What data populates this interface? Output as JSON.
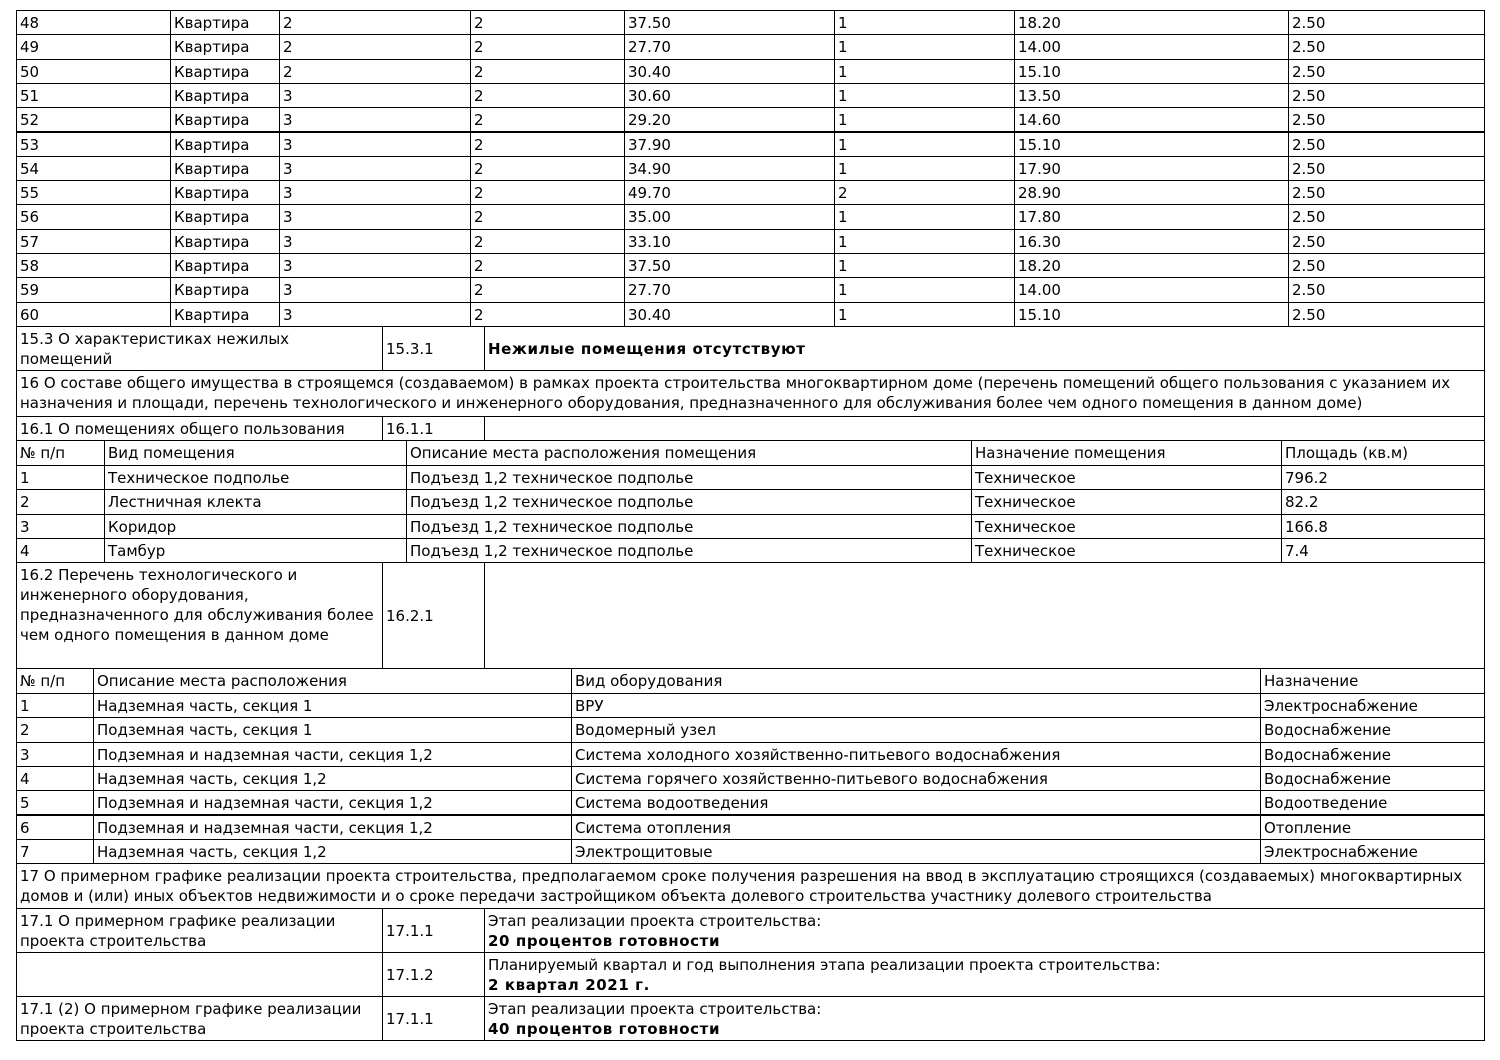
{
  "apartments": {
    "rows": [
      [
        "48",
        "Квартира",
        "2",
        "2",
        "37.50",
        "1",
        "18.20",
        "2.50"
      ],
      [
        "49",
        "Квартира",
        "2",
        "2",
        "27.70",
        "1",
        "14.00",
        "2.50"
      ],
      [
        "50",
        "Квартира",
        "2",
        "2",
        "30.40",
        "1",
        "15.10",
        "2.50"
      ],
      [
        "51",
        "Квартира",
        "3",
        "2",
        "30.60",
        "1",
        "13.50",
        "2.50"
      ],
      [
        "52",
        "Квартира",
        "3",
        "2",
        "29.20",
        "1",
        "14.60",
        "2.50"
      ],
      [
        "53",
        "Квартира",
        "3",
        "2",
        "37.90",
        "1",
        "15.10",
        "2.50"
      ],
      [
        "54",
        "Квартира",
        "3",
        "2",
        "34.90",
        "1",
        "17.90",
        "2.50"
      ],
      [
        "55",
        "Квартира",
        "3",
        "2",
        "49.70",
        "2",
        "28.90",
        "2.50"
      ],
      [
        "56",
        "Квартира",
        "3",
        "2",
        "35.00",
        "1",
        "17.80",
        "2.50"
      ],
      [
        "57",
        "Квартира",
        "3",
        "2",
        "33.10",
        "1",
        "16.30",
        "2.50"
      ],
      [
        "58",
        "Квартира",
        "3",
        "2",
        "37.50",
        "1",
        "18.20",
        "2.50"
      ],
      [
        "59",
        "Квартира",
        "3",
        "2",
        "27.70",
        "1",
        "14.00",
        "2.50"
      ],
      [
        "60",
        "Квартира",
        "3",
        "2",
        "30.40",
        "1",
        "15.10",
        "2.50"
      ]
    ]
  },
  "section_15_3": {
    "label": "15.3 О характеристиках нежилых помещений",
    "code": "15.3.1",
    "value": "Нежилые помещения отсутствуют"
  },
  "section_16": {
    "title": "16 О составе общего имущества в строящемся (создаваемом) в рамках проекта строительства многоквартирном доме (перечень помещений общего пользования с указанием их назначения и площади, перечень технологического и инженерного оборудования, предназначенного для обслуживания более чем одного помещения в данном доме)"
  },
  "section_16_1": {
    "label": "16.1 О помещениях общего пользования",
    "code": "16.1.1"
  },
  "premises": {
    "header": [
      "№ п/п",
      "Вид помещения",
      "Описание места расположения помещения",
      "Назначение помещения",
      "Площадь (кв.м)"
    ],
    "rows": [
      [
        "1",
        "Техническое подполье",
        "Подъезд 1,2 техническое подполье",
        "Техническое",
        "796.2"
      ],
      [
        "2",
        "Лестничная клекта",
        "Подъезд 1,2 техническое подполье",
        "Техническое",
        "82.2"
      ],
      [
        "3",
        "Коридор",
        "Подъезд 1,2 техническое подполье",
        "Техническое",
        "166.8"
      ],
      [
        "4",
        "Тамбур",
        "Подъезд 1,2 техническое подполье",
        "Техническое",
        "7.4"
      ]
    ]
  },
  "section_16_2": {
    "label": "16.2 Перечень технологического и инженерного оборудования, предназначенного для обслуживания более чем одного помещения в данном доме",
    "code": "16.2.1"
  },
  "equipment": {
    "header": [
      "№ п/п",
      "Описание места расположения",
      "Вид оборудования",
      "Назначение"
    ],
    "rows": [
      [
        "1",
        "Надземная часть, секция 1",
        "ВРУ",
        "Электроснабжение"
      ],
      [
        "2",
        "Подземная часть, секция 1",
        "Водомерный узел",
        "Водоснабжение"
      ],
      [
        "3",
        "Подземная и надземная части, секция 1,2",
        "Система холодного хозяйственно-питьевого водоснабжения",
        "Водоснабжение"
      ],
      [
        "4",
        "Надземная часть, секция 1,2",
        "Система горячего хозяйственно-питьевого водоснабжения",
        "Водоснабжение"
      ],
      [
        "5",
        "Подземная и надземная части, секция 1,2",
        "Система водоотведения",
        "Водоотведение"
      ],
      [
        "6",
        "Подземная и надземная части, секция 1,2",
        "Система отопления",
        "Отопление"
      ],
      [
        "7",
        "Надземная часть, секция 1,2",
        "Электрощитовые",
        "Электроснабжение"
      ]
    ]
  },
  "section_17": {
    "title": "17 О примерном графике реализации проекта строительства, предполагаемом сроке получения разрешения на ввод в эксплуатацию строящихся (создаваемых) многоквартирных домов и (или) иных объектов недвижимости и о сроке передачи застройщиком объекта долевого строительства участнику долевого строительства"
  },
  "schedule": [
    {
      "label": "17.1 О примерном графике реализации проекта строительства",
      "code": "17.1.1",
      "caption": "Этап реализации проекта строительства:",
      "value": "20 процентов готовности"
    },
    {
      "code": "17.1.2",
      "caption": "Планируемый квартал и год выполнения этапа реализации проекта строительства:",
      "value": "2 квартал 2021 г."
    },
    {
      "label": "17.1 (2) О примерном графике реализации проекта строительства",
      "code": "17.1.1",
      "caption": "Этап реализации проекта строительства:",
      "value": "40 процентов готовности"
    }
  ]
}
